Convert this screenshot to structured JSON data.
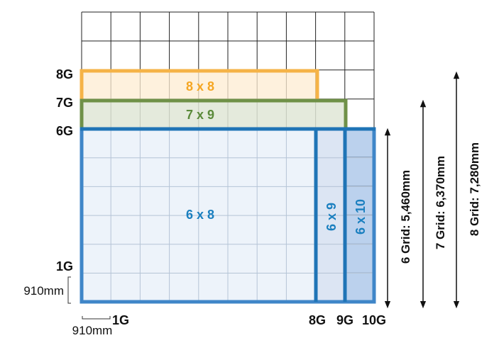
{
  "grid": {
    "label_1g_left": "1G",
    "label_6g_left": "6G",
    "label_7g_left": "7G",
    "label_8g_left": "8G",
    "label_1g_bottom": "1G",
    "label_8g_bottom": "8G",
    "label_9g_bottom": "9G",
    "label_10g_bottom": "10G",
    "unit_vertical": "910mm",
    "unit_horizontal": "910mm"
  },
  "rooms": {
    "r8x8": {
      "label": "8 x 8",
      "color": "#f5a623"
    },
    "r7x9": {
      "label": "7 x 9",
      "color": "#5a8a3a"
    },
    "r6x8": {
      "label": "6 x 8",
      "color": "#1a7fbf"
    },
    "r6x9": {
      "label": "6 x 9",
      "color": "#1a7fbf"
    },
    "r6x10": {
      "label": "6 x 10",
      "color": "#1a7fbf"
    }
  },
  "dimensions": {
    "six_grid": "6 Grid: 5,460mm",
    "seven_grid": "7 Grid: 6,370mm",
    "eight_grid": "8 Grid: 7,280mm"
  }
}
